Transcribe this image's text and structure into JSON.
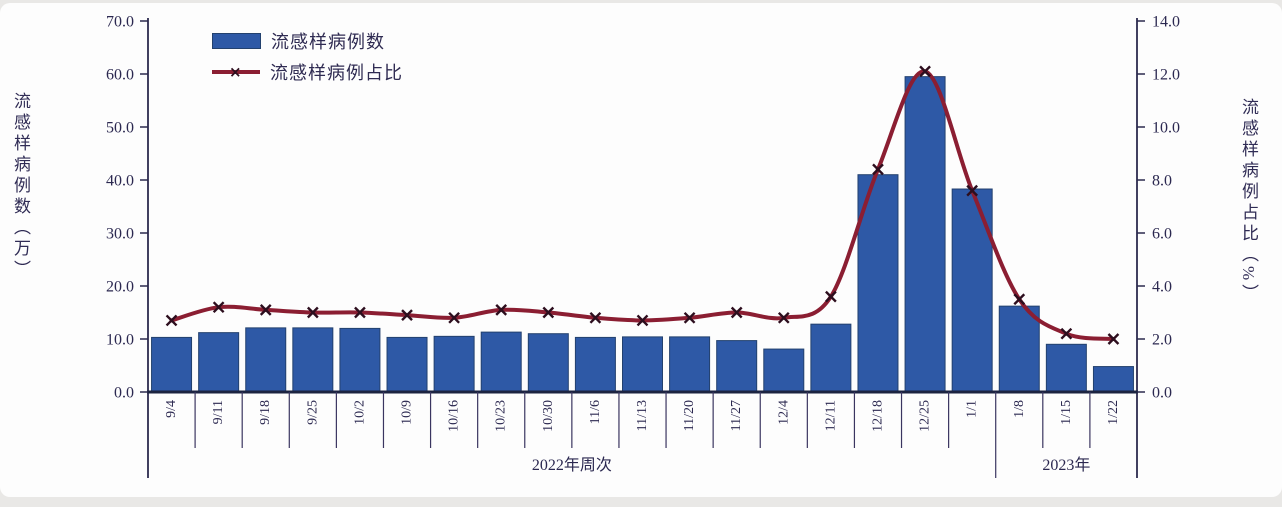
{
  "page": {
    "background": "#e9e8e6",
    "canvas_background": "#fdfdfd"
  },
  "chart_data": {
    "type": "bar",
    "subtype": "combo-bar-line-dual-axis",
    "categories": [
      "9/4",
      "9/11",
      "9/18",
      "9/25",
      "10/2",
      "10/9",
      "10/16",
      "10/23",
      "10/30",
      "11/6",
      "11/13",
      "11/20",
      "11/27",
      "12/4",
      "12/11",
      "12/18",
      "12/25",
      "1/1",
      "1/8",
      "1/15",
      "1/22"
    ],
    "series": [
      {
        "name": "流感样病例数",
        "type": "bar",
        "axis": "left",
        "values": [
          10.3,
          11.2,
          12.1,
          12.1,
          12.0,
          10.3,
          10.5,
          11.3,
          11.0,
          10.3,
          10.4,
          10.4,
          9.7,
          8.1,
          12.8,
          41.0,
          59.5,
          38.3,
          16.2,
          9.0,
          4.8
        ],
        "color": "#2e59a6"
      },
      {
        "name": "流感样病例占比",
        "type": "line",
        "axis": "right",
        "marker": "x",
        "smooth": true,
        "values": [
          2.7,
          3.2,
          3.1,
          3.0,
          3.0,
          2.9,
          2.8,
          3.1,
          3.0,
          2.8,
          2.7,
          2.8,
          3.0,
          2.8,
          3.6,
          8.4,
          12.1,
          7.6,
          3.5,
          2.2,
          2.0
        ],
        "color": "#8b1e32"
      }
    ],
    "left_axis": {
      "title": "流感样病例数（万）",
      "min": 0,
      "max": 70,
      "tick_labels_top_to_bottom": [
        "70.0",
        "60.0",
        "50.0",
        "40.0",
        "30.0",
        "20.0",
        "10.0",
        "0.0"
      ]
    },
    "right_axis": {
      "title": "流感样病例占比（%）",
      "min": 0,
      "max": 14,
      "tick_labels_top_to_bottom": [
        "14.0",
        "12.0",
        "10.0",
        "8.0",
        "6.0",
        "4.0",
        "2.0",
        "0.0"
      ]
    },
    "x_axis": {
      "groups": [
        {
          "label": "2022年周次",
          "from": 0,
          "to": 17
        },
        {
          "label": "2023年",
          "from": 18,
          "to": 20
        }
      ]
    },
    "legend": [
      {
        "label": "流感样病例数",
        "swatch": "bar"
      },
      {
        "label": "流感样病例占比",
        "swatch": "line-x"
      }
    ],
    "colors": {
      "bar_fill": "#2e59a6",
      "bar_stroke": "#23416e",
      "line": "#8b1e32",
      "marker": "#2d0e1e",
      "axis": "#2c2a4e",
      "text": "#2b2850"
    },
    "legend_position": "top-left-inside",
    "grid": false
  }
}
